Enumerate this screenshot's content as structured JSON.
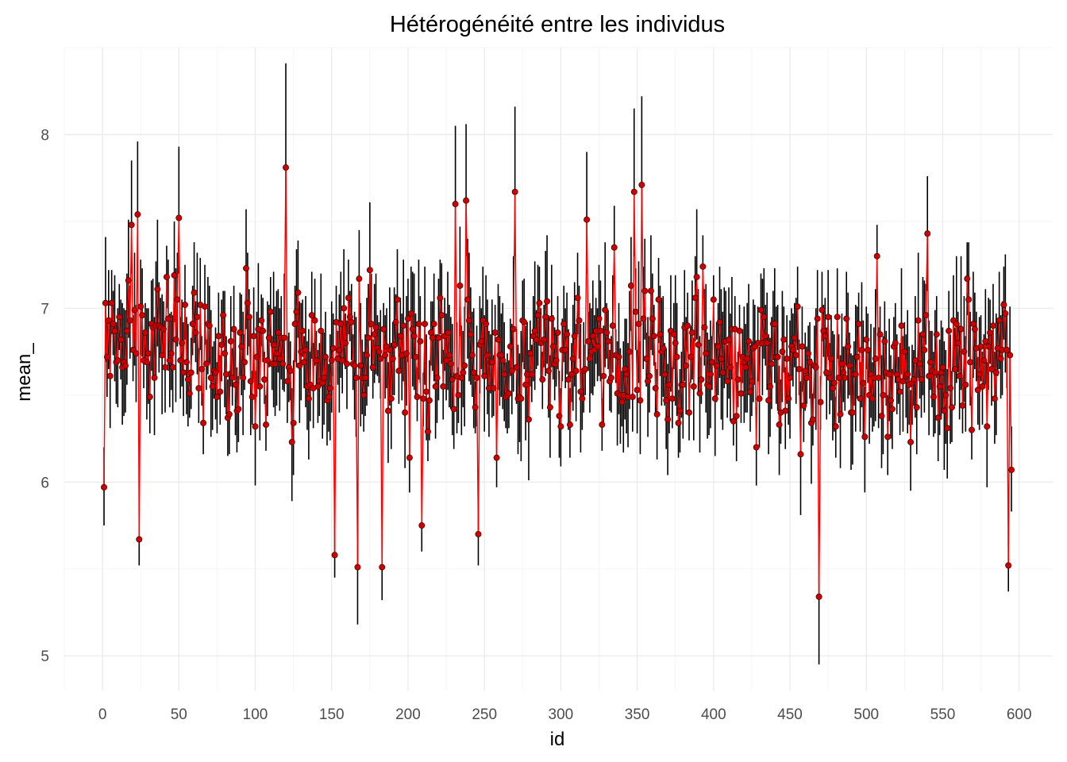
{
  "chart_data": {
    "type": "scatter",
    "title": "Hétérogénéité entre les individus",
    "xlabel": "id",
    "ylabel": "mean_",
    "xlim": [
      -25,
      622
    ],
    "ylim": [
      4.8,
      8.5
    ],
    "x_ticks": [
      0,
      50,
      100,
      150,
      200,
      250,
      300,
      350,
      400,
      450,
      500,
      550,
      600
    ],
    "y_ticks": [
      5,
      6,
      7,
      8
    ],
    "x_tick_labels": [
      "0",
      "50",
      "100",
      "150",
      "200",
      "250",
      "300",
      "350",
      "400",
      "450",
      "500",
      "550",
      "600"
    ],
    "y_tick_labels": [
      "5",
      "6",
      "7",
      "8"
    ],
    "grid": true,
    "legend": "none",
    "n_points": 595,
    "style": {
      "point_color": "#cc0000",
      "point_outline": "#550000",
      "line_color": "#ff0000",
      "errorbar_color": "#000000"
    },
    "highlighted_points": [
      {
        "x": 1,
        "y": 5.97,
        "lower": 5.75,
        "upper": 6.2
      },
      {
        "x": 19,
        "y": 7.48,
        "lower": 7.2,
        "upper": 7.85
      },
      {
        "x": 23,
        "y": 7.54,
        "lower": 7.2,
        "upper": 7.96
      },
      {
        "x": 24,
        "y": 5.67,
        "lower": 5.52,
        "upper": 5.85
      },
      {
        "x": 50,
        "y": 7.52,
        "lower": 7.2,
        "upper": 7.93
      },
      {
        "x": 120,
        "y": 7.81,
        "lower": 7.45,
        "upper": 8.41
      },
      {
        "x": 152,
        "y": 5.58,
        "lower": 5.45,
        "upper": 5.75
      },
      {
        "x": 167,
        "y": 5.51,
        "lower": 5.18,
        "upper": 5.8
      },
      {
        "x": 183,
        "y": 5.51,
        "lower": 5.32,
        "upper": 5.7
      },
      {
        "x": 209,
        "y": 5.75,
        "lower": 5.6,
        "upper": 5.95
      },
      {
        "x": 231,
        "y": 7.6,
        "lower": 7.3,
        "upper": 8.05
      },
      {
        "x": 238,
        "y": 7.62,
        "lower": 7.3,
        "upper": 8.06
      },
      {
        "x": 246,
        "y": 5.7,
        "lower": 5.52,
        "upper": 5.9
      },
      {
        "x": 270,
        "y": 7.67,
        "lower": 7.3,
        "upper": 8.16
      },
      {
        "x": 317,
        "y": 7.51,
        "lower": 7.2,
        "upper": 7.9
      },
      {
        "x": 348,
        "y": 7.67,
        "lower": 7.3,
        "upper": 8.15
      },
      {
        "x": 353,
        "y": 7.71,
        "lower": 7.35,
        "upper": 8.22
      },
      {
        "x": 469,
        "y": 5.34,
        "lower": 4.95,
        "upper": 5.68
      },
      {
        "x": 540,
        "y": 7.43,
        "lower": 7.1,
        "upper": 7.76
      },
      {
        "x": 593,
        "y": 5.52,
        "lower": 5.37,
        "upper": 5.72
      },
      {
        "x": 595,
        "y": 6.07,
        "lower": 5.83,
        "upper": 6.32
      }
    ]
  }
}
